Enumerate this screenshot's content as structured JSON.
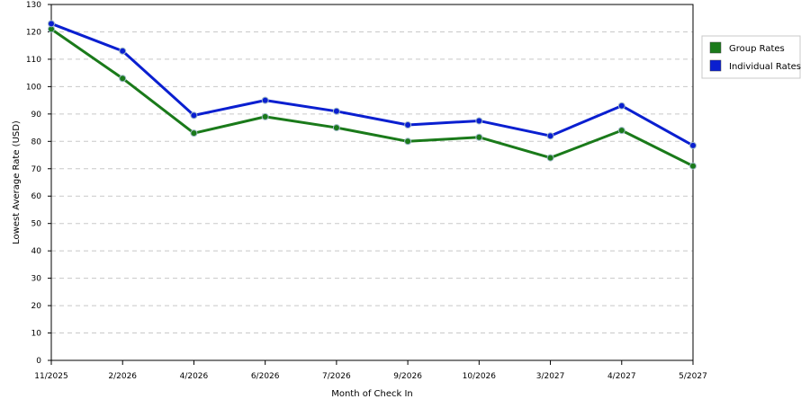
{
  "chart_data": {
    "type": "line",
    "title": "",
    "xlabel": "Month of Check In",
    "ylabel": "Lowest Average Rate (USD)",
    "categories": [
      "11/2025",
      "2/2026",
      "4/2026",
      "6/2026",
      "7/2026",
      "9/2026",
      "10/2026",
      "3/2027",
      "4/2027",
      "5/2027"
    ],
    "ylim": [
      0,
      130
    ],
    "yticks": [
      0,
      10,
      20,
      30,
      40,
      50,
      60,
      70,
      80,
      90,
      100,
      110,
      120,
      130
    ],
    "grid": "horizontal dashed",
    "legend_position": "right",
    "series": [
      {
        "name": "Group Rates",
        "color": "#1a7a1a",
        "values": [
          121,
          103,
          83,
          89,
          85,
          80,
          81.5,
          74,
          84,
          71
        ]
      },
      {
        "name": "Individual Rates",
        "color": "#0a1fd0",
        "values": [
          123,
          113,
          89.5,
          95,
          91,
          86,
          87.5,
          82,
          93,
          78.5
        ]
      }
    ]
  }
}
